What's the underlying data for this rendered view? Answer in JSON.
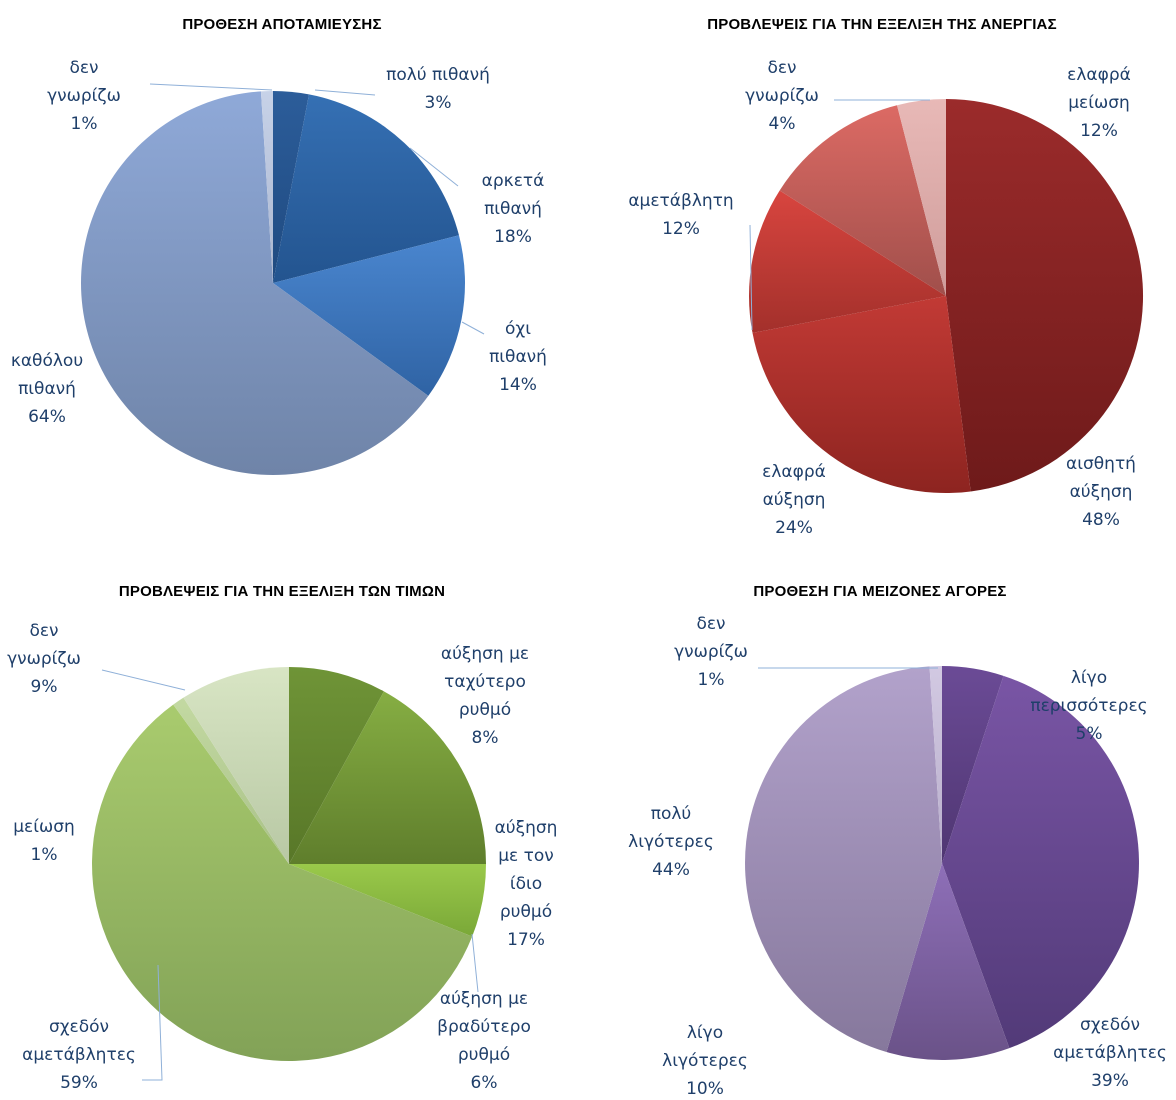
{
  "chart_data": [
    {
      "type": "pie",
      "title": "ΠΡΟΘΕΣΗ ΑΠΟΤΑΜΙΕΥΣΗΣ",
      "unit": "%",
      "slices": [
        {
          "label": [
            "πολύ πιθανή"
          ],
          "value": 3,
          "color_top": "#2c5d9a",
          "color_bot": "#1f4a80"
        },
        {
          "label": [
            "αρκετά",
            "πιθανή"
          ],
          "value": 18,
          "color_top": "#3570b4",
          "color_bot": "#23548f"
        },
        {
          "label": [
            "όχι",
            "πιθανή"
          ],
          "value": 14,
          "color_top": "#4a86cf",
          "color_bot": "#2f63a4"
        },
        {
          "label": [
            "καθόλου",
            "πιθανή"
          ],
          "value": 64,
          "color_top": "#8fa9d8",
          "color_bot": "#6f84a8"
        },
        {
          "label": [
            "δεν",
            "γνωρίζω"
          ],
          "value": 1,
          "color_top": "#c7d2e8",
          "color_bot": "#aab6cf"
        }
      ]
    },
    {
      "type": "pie",
      "title": "ΠΡΟΒΛΕΨΕΙΣ ΓΙΑ ΤΗΝ ΕΞΕΛΙΞΗ ΤΗΣ ΑΝΕΡΓΙΑΣ",
      "unit": "%",
      "slices": [
        {
          "label": [
            "αισθητή",
            "αύξηση"
          ],
          "value": 48,
          "color_top": "#9b2b2b",
          "color_bot": "#6e1a1a"
        },
        {
          "label": [
            "ελαφρά",
            "αύξηση"
          ],
          "value": 24,
          "color_top": "#c23a35",
          "color_bot": "#8d2420"
        },
        {
          "label": [
            "αμετάβλητη"
          ],
          "value": 12,
          "color_top": "#d8453f",
          "color_bot": "#a3302b"
        },
        {
          "label": [
            "ελαφρά",
            "μείωση"
          ],
          "value": 12,
          "color_top": "#dc6a64",
          "color_bot": "#a04f4b"
        },
        {
          "label": [
            "δεν",
            "γνωρίζω"
          ],
          "value": 4,
          "color_top": "#e8b9b7",
          "color_bot": "#cf9c9a"
        }
      ]
    },
    {
      "type": "pie",
      "title": "ΠΡΟΒΛΕΨΕΙΣ ΓΙΑ ΤΗΝ ΕΞΕΛΙΞΗ ΤΩΝ ΤΙΜΩΝ",
      "unit": "%",
      "slices": [
        {
          "label": [
            "αύξηση με",
            "ταχύτερο",
            "ρυθμό"
          ],
          "value": 8,
          "color_top": "#6f9437",
          "color_bot": "#587728"
        },
        {
          "label": [
            "αύξηση",
            "με τον",
            "ίδιο",
            "ρυθμό"
          ],
          "value": 17,
          "color_top": "#86ae43",
          "color_bot": "#5f7e2c"
        },
        {
          "label": [
            "αύξηση με",
            "βραδύτερο",
            "ρυθμό"
          ],
          "value": 6,
          "color_top": "#9ac94a",
          "color_bot": "#7aa838"
        },
        {
          "label": [
            "σχεδόν",
            "αμετάβλητες"
          ],
          "value": 59,
          "color_top": "#a9cb6e",
          "color_bot": "#82a257"
        },
        {
          "label": [
            "μείωση"
          ],
          "value": 1,
          "color_top": "#c3d9a2",
          "color_bot": "#a9c188"
        },
        {
          "label": [
            "δεν",
            "γνωρίζω"
          ],
          "value": 9,
          "color_top": "#d8e5c4",
          "color_bot": "#b8c8a4"
        }
      ]
    },
    {
      "type": "pie",
      "title": "ΠΡΟΘΕΣΗ ΓΙΑ ΜΕΙΖΟΝΕΣ ΑΓΟΡΕΣ",
      "unit": "%",
      "slices": [
        {
          "label": [
            "λίγο",
            "περισσότερες"
          ],
          "value": 5,
          "color_top": "#6b4b96",
          "color_bot": "#4f3672"
        },
        {
          "label": [
            "σχεδόν",
            "αμετάβλητες"
          ],
          "value": 39,
          "color_top": "#7955a5",
          "color_bot": "#523a78"
        },
        {
          "label": [
            "λίγο",
            "λιγότερες"
          ],
          "value": 10,
          "color_top": "#8e6fb8",
          "color_bot": "#6a5288"
        },
        {
          "label": [
            "πολύ",
            "λιγότερες"
          ],
          "value": 44,
          "color_top": "#b2a2cb",
          "color_bot": "#86789c"
        },
        {
          "label": [
            "δεν",
            "γνωρίζω"
          ],
          "value": 1,
          "color_top": "#d2c9e2",
          "color_bot": "#b8aecb"
        }
      ]
    }
  ]
}
